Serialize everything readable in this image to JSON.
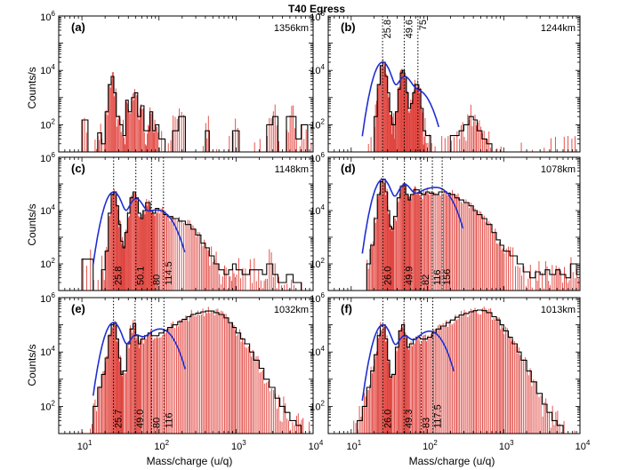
{
  "figure": {
    "title": "T40 Egress",
    "ylabel": "Counts/s",
    "xlabel": "Mass/charge (u/q)",
    "x_tick_labels": [
      "10^1",
      "10^2",
      "10^3",
      "10^4"
    ],
    "y_tick_labels": [
      "10^2",
      "10^4",
      "10^6"
    ],
    "colors": {
      "histogram": "#000000",
      "bars": "#e0403a",
      "fit": "#1f2fd0",
      "markers": "#000000"
    }
  },
  "chart_data": [
    {
      "type": "bar",
      "panel": "(a)",
      "altitude": "1356km",
      "xscale": "log",
      "yscale": "log",
      "xlim": [
        5,
        10000
      ],
      "ylim": [
        10,
        1000000
      ],
      "fit": false,
      "markers": [],
      "marker_labels": [],
      "hist": [
        [
          10,
          150
        ],
        [
          12,
          10
        ],
        [
          14,
          10
        ],
        [
          16,
          50
        ],
        [
          18,
          20
        ],
        [
          20,
          300
        ],
        [
          22,
          3000
        ],
        [
          24,
          6000
        ],
        [
          26,
          1500
        ],
        [
          28,
          200
        ],
        [
          31,
          100
        ],
        [
          34,
          40
        ],
        [
          37,
          800
        ],
        [
          40,
          300
        ],
        [
          44,
          1000
        ],
        [
          48,
          1500
        ],
        [
          53,
          200
        ],
        [
          58,
          500
        ],
        [
          64,
          60
        ],
        [
          70,
          60
        ],
        [
          76,
          300
        ],
        [
          83,
          60
        ],
        [
          90,
          100
        ],
        [
          100,
          30
        ],
        [
          120,
          10
        ],
        [
          150,
          60
        ],
        [
          180,
          200
        ],
        [
          220,
          10
        ],
        [
          300,
          10
        ],
        [
          400,
          60
        ],
        [
          450,
          10
        ],
        [
          600,
          10
        ],
        [
          900,
          60
        ],
        [
          1100,
          10
        ],
        [
          2000,
          10
        ],
        [
          2500,
          100
        ],
        [
          3000,
          200
        ],
        [
          3500,
          10
        ],
        [
          4500,
          200
        ],
        [
          5200,
          200
        ],
        [
          6000,
          30
        ],
        [
          7000,
          100
        ],
        [
          8500,
          10
        ]
      ]
    },
    {
      "type": "bar",
      "panel": "(b)",
      "altitude": "1244km",
      "xscale": "log",
      "yscale": "log",
      "xlim": [
        5,
        10000
      ],
      "ylim": [
        10,
        1000000
      ],
      "fit": true,
      "markers": [
        25.8,
        49.6,
        75
      ],
      "marker_labels": [
        "25.8",
        "49.6",
        "75"
      ],
      "hist": [
        [
          10,
          10
        ],
        [
          16,
          10
        ],
        [
          18,
          10
        ],
        [
          20,
          200
        ],
        [
          22,
          3000
        ],
        [
          24,
          15000
        ],
        [
          26,
          20000
        ],
        [
          28,
          6000
        ],
        [
          30,
          1500
        ],
        [
          32,
          300
        ],
        [
          34,
          100
        ],
        [
          36,
          100
        ],
        [
          38,
          300
        ],
        [
          41,
          2000
        ],
        [
          44,
          8000
        ],
        [
          47,
          10000
        ],
        [
          50,
          6000
        ],
        [
          53,
          1500
        ],
        [
          56,
          400
        ],
        [
          60,
          600
        ],
        [
          64,
          1500
        ],
        [
          68,
          3000
        ],
        [
          72,
          3000
        ],
        [
          77,
          2000
        ],
        [
          82,
          400
        ],
        [
          88,
          60
        ],
        [
          95,
          40
        ],
        [
          110,
          10
        ],
        [
          150,
          10
        ],
        [
          200,
          40
        ],
        [
          260,
          60
        ],
        [
          300,
          100
        ],
        [
          350,
          200
        ],
        [
          400,
          150
        ],
        [
          450,
          60
        ],
        [
          520,
          30
        ],
        [
          600,
          20
        ],
        [
          700,
          10
        ],
        [
          1000,
          10
        ],
        [
          2000,
          10
        ],
        [
          3000,
          10
        ],
        [
          4000,
          10
        ],
        [
          6000,
          10
        ],
        [
          8500,
          10
        ]
      ]
    },
    {
      "type": "bar",
      "panel": "(c)",
      "altitude": "1148km",
      "xscale": "log",
      "yscale": "log",
      "xlim": [
        5,
        10000
      ],
      "ylim": [
        10,
        1000000
      ],
      "fit": true,
      "markers": [
        25.8,
        50.1,
        80,
        114.5
      ],
      "marker_labels": [
        "25.8",
        "50.1",
        "80",
        "114.5"
      ],
      "hist": [
        [
          10,
          150
        ],
        [
          14,
          10
        ],
        [
          16,
          10
        ],
        [
          18,
          60
        ],
        [
          20,
          300
        ],
        [
          22,
          8000
        ],
        [
          24,
          40000
        ],
        [
          26,
          50000
        ],
        [
          28,
          15000
        ],
        [
          30,
          3000
        ],
        [
          32,
          700
        ],
        [
          34,
          400
        ],
        [
          36,
          1500
        ],
        [
          39,
          8000
        ],
        [
          42,
          30000
        ],
        [
          46,
          50000
        ],
        [
          50,
          30000
        ],
        [
          54,
          8000
        ],
        [
          58,
          5000
        ],
        [
          62,
          10000
        ],
        [
          67,
          20000
        ],
        [
          72,
          20000
        ],
        [
          77,
          10000
        ],
        [
          83,
          8000
        ],
        [
          90,
          12000
        ],
        [
          100,
          10000
        ],
        [
          115,
          7000
        ],
        [
          130,
          6000
        ],
        [
          150,
          5000
        ],
        [
          180,
          4000
        ],
        [
          220,
          3000
        ],
        [
          260,
          2000
        ],
        [
          300,
          1200
        ],
        [
          350,
          600
        ],
        [
          400,
          400
        ],
        [
          450,
          200
        ],
        [
          520,
          100
        ],
        [
          600,
          60
        ],
        [
          700,
          40
        ],
        [
          800,
          60
        ],
        [
          900,
          100
        ],
        [
          1000,
          60
        ],
        [
          1200,
          40
        ],
        [
          1500,
          60
        ],
        [
          1800,
          60
        ],
        [
          2200,
          40
        ],
        [
          2500,
          100
        ],
        [
          3000,
          40
        ],
        [
          3500,
          20
        ],
        [
          4500,
          40
        ],
        [
          5500,
          20
        ],
        [
          7000,
          10
        ]
      ]
    },
    {
      "type": "bar",
      "panel": "(d)",
      "altitude": "1078km",
      "xscale": "log",
      "yscale": "log",
      "xlim": [
        5,
        10000
      ],
      "ylim": [
        10,
        1000000
      ],
      "fit": true,
      "markers": [
        26.0,
        49.9,
        82,
        116,
        156
      ],
      "marker_labels": [
        "26.0",
        "49.9",
        "82",
        "116",
        "156"
      ],
      "hist": [
        [
          14,
          10
        ],
        [
          16,
          100
        ],
        [
          18,
          500
        ],
        [
          20,
          5000
        ],
        [
          22,
          40000
        ],
        [
          24,
          120000
        ],
        [
          26,
          150000
        ],
        [
          28,
          50000
        ],
        [
          30,
          10000
        ],
        [
          32,
          2500
        ],
        [
          34,
          2000
        ],
        [
          36,
          6000
        ],
        [
          40,
          30000
        ],
        [
          44,
          80000
        ],
        [
          48,
          100000
        ],
        [
          52,
          40000
        ],
        [
          56,
          25000
        ],
        [
          60,
          40000
        ],
        [
          66,
          60000
        ],
        [
          72,
          60000
        ],
        [
          78,
          45000
        ],
        [
          85,
          40000
        ],
        [
          95,
          50000
        ],
        [
          105,
          45000
        ],
        [
          120,
          40000
        ],
        [
          140,
          50000
        ],
        [
          160,
          50000
        ],
        [
          180,
          45000
        ],
        [
          200,
          40000
        ],
        [
          230,
          30000
        ],
        [
          260,
          25000
        ],
        [
          300,
          20000
        ],
        [
          350,
          15000
        ],
        [
          400,
          10000
        ],
        [
          450,
          7000
        ],
        [
          520,
          5000
        ],
        [
          600,
          3000
        ],
        [
          700,
          1500
        ],
        [
          800,
          800
        ],
        [
          900,
          500
        ],
        [
          1000,
          300
        ],
        [
          1200,
          200
        ],
        [
          1500,
          100
        ],
        [
          1800,
          50
        ],
        [
          2200,
          30
        ],
        [
          2600,
          50
        ],
        [
          3000,
          40
        ],
        [
          3500,
          60
        ],
        [
          4000,
          40
        ],
        [
          4800,
          60
        ],
        [
          5500,
          40
        ],
        [
          6500,
          30
        ],
        [
          7500,
          100
        ],
        [
          9000,
          40
        ]
      ]
    },
    {
      "type": "bar",
      "panel": "(e)",
      "altitude": "1032km",
      "xscale": "log",
      "yscale": "log",
      "xlim": [
        5,
        10000
      ],
      "ylim": [
        10,
        1000000
      ],
      "fit": true,
      "markers": [
        25.7,
        49.0,
        80,
        116
      ],
      "marker_labels": [
        "25.7",
        "49.0",
        "80",
        "116"
      ],
      "hist": [
        [
          10,
          10
        ],
        [
          12,
          10
        ],
        [
          14,
          100
        ],
        [
          16,
          500
        ],
        [
          18,
          1500
        ],
        [
          20,
          6000
        ],
        [
          22,
          40000
        ],
        [
          24,
          100000
        ],
        [
          26,
          120000
        ],
        [
          28,
          30000
        ],
        [
          30,
          6000
        ],
        [
          32,
          1500
        ],
        [
          34,
          2000
        ],
        [
          38,
          20000
        ],
        [
          42,
          70000
        ],
        [
          46,
          110000
        ],
        [
          50,
          40000
        ],
        [
          54,
          20000
        ],
        [
          58,
          30000
        ],
        [
          65,
          40000
        ],
        [
          72,
          50000
        ],
        [
          80,
          40000
        ],
        [
          90,
          40000
        ],
        [
          100,
          50000
        ],
        [
          115,
          60000
        ],
        [
          130,
          80000
        ],
        [
          150,
          100000
        ],
        [
          175,
          130000
        ],
        [
          200,
          160000
        ],
        [
          230,
          200000
        ],
        [
          260,
          240000
        ],
        [
          300,
          270000
        ],
        [
          350,
          300000
        ],
        [
          400,
          320000
        ],
        [
          450,
          320000
        ],
        [
          520,
          280000
        ],
        [
          600,
          240000
        ],
        [
          700,
          180000
        ],
        [
          800,
          120000
        ],
        [
          900,
          80000
        ],
        [
          1000,
          50000
        ],
        [
          1150,
          30000
        ],
        [
          1300,
          20000
        ],
        [
          1500,
          10000
        ],
        [
          1700,
          5000
        ],
        [
          2000,
          2500
        ],
        [
          2300,
          1000
        ],
        [
          2700,
          500
        ],
        [
          3200,
          200
        ],
        [
          3700,
          100
        ],
        [
          4300,
          60
        ],
        [
          5000,
          30
        ],
        [
          6000,
          20
        ],
        [
          7000,
          10
        ],
        [
          8000,
          10
        ]
      ]
    },
    {
      "type": "bar",
      "panel": "(f)",
      "altitude": "1013km",
      "xscale": "log",
      "yscale": "log",
      "xlim": [
        5,
        10000
      ],
      "ylim": [
        10,
        1000000
      ],
      "fit": true,
      "markers": [
        26.0,
        49.3,
        83,
        117.5
      ],
      "marker_labels": [
        "26.0",
        "49.3",
        "83",
        "117.5"
      ],
      "hist": [
        [
          10,
          10
        ],
        [
          12,
          30
        ],
        [
          14,
          100
        ],
        [
          16,
          500
        ],
        [
          18,
          2000
        ],
        [
          20,
          8000
        ],
        [
          22,
          40000
        ],
        [
          24,
          90000
        ],
        [
          26,
          100000
        ],
        [
          28,
          30000
        ],
        [
          30,
          5000
        ],
        [
          32,
          1200
        ],
        [
          34,
          1500
        ],
        [
          38,
          15000
        ],
        [
          42,
          60000
        ],
        [
          46,
          100000
        ],
        [
          50,
          40000
        ],
        [
          54,
          15000
        ],
        [
          58,
          20000
        ],
        [
          65,
          30000
        ],
        [
          72,
          35000
        ],
        [
          80,
          30000
        ],
        [
          90,
          30000
        ],
        [
          100,
          35000
        ],
        [
          115,
          50000
        ],
        [
          130,
          70000
        ],
        [
          150,
          90000
        ],
        [
          175,
          120000
        ],
        [
          200,
          150000
        ],
        [
          230,
          190000
        ],
        [
          260,
          230000
        ],
        [
          300,
          260000
        ],
        [
          350,
          300000
        ],
        [
          400,
          330000
        ],
        [
          450,
          350000
        ],
        [
          520,
          330000
        ],
        [
          600,
          280000
        ],
        [
          700,
          200000
        ],
        [
          800,
          150000
        ],
        [
          900,
          100000
        ],
        [
          1000,
          60000
        ],
        [
          1150,
          35000
        ],
        [
          1300,
          20000
        ],
        [
          1500,
          10000
        ],
        [
          1700,
          5000
        ],
        [
          2000,
          2000
        ],
        [
          2300,
          800
        ],
        [
          2700,
          300
        ],
        [
          3200,
          120
        ],
        [
          3700,
          60
        ],
        [
          4300,
          30
        ],
        [
          5000,
          20
        ],
        [
          6000,
          10
        ],
        [
          8000,
          10
        ]
      ]
    }
  ]
}
